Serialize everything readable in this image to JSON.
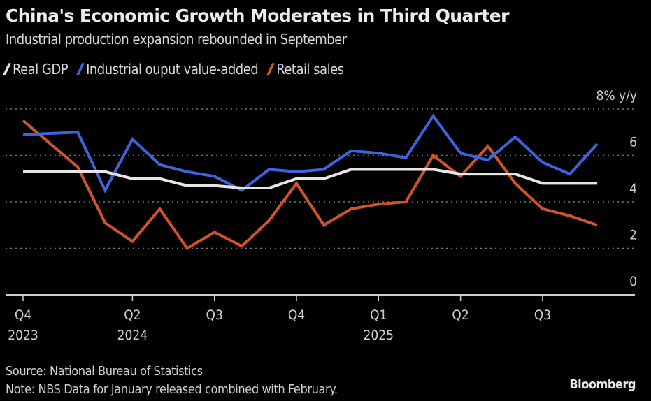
{
  "chart_data": {
    "type": "line",
    "title": "China's Economic Growth Moderates in Third Quarter",
    "subtitle": "Industrial production expansion rebounded in September",
    "unit_label": "8% y/y",
    "ylim": [
      0,
      8
    ],
    "yticks": [
      0,
      2,
      4,
      6,
      8
    ],
    "ytick_labels": [
      "0",
      "2",
      "4",
      "6",
      "8% y/y"
    ],
    "xticks": [
      {
        "label": "Q4",
        "year": "2023",
        "pos": 0
      },
      {
        "label": "Q2",
        "year": "2024",
        "pos": 4
      },
      {
        "label": "Q3",
        "year": "",
        "pos": 7
      },
      {
        "label": "Q4",
        "year": "",
        "pos": 10
      },
      {
        "label": "Q1",
        "year": "2025",
        "pos": 13
      },
      {
        "label": "Q2",
        "year": "",
        "pos": 16
      },
      {
        "label": "Q3",
        "year": "",
        "pos": 19
      }
    ],
    "x_positions": [
      0,
      2,
      3,
      4,
      5,
      6,
      7,
      8,
      9,
      10,
      11,
      12,
      13,
      14,
      15,
      16,
      17,
      18,
      19,
      20,
      21
    ],
    "series": [
      {
        "name": "Real GDP",
        "color": "#e6e6e6",
        "values": [
          5.3,
          5.3,
          5.3,
          5.0,
          5.0,
          4.7,
          4.7,
          4.6,
          4.6,
          5.0,
          5.0,
          5.4,
          5.4,
          5.4,
          5.4,
          5.2,
          5.2,
          5.2,
          4.8,
          4.8,
          4.8
        ]
      },
      {
        "name": "Industrial ouput value-added",
        "color": "#3e63dd",
        "values": [
          6.9,
          7.0,
          4.5,
          6.7,
          5.6,
          5.3,
          5.1,
          4.5,
          5.4,
          5.3,
          5.4,
          6.2,
          6.1,
          5.9,
          7.7,
          6.1,
          5.8,
          6.8,
          5.7,
          5.2,
          6.5
        ]
      },
      {
        "name": "Retail sales",
        "color": "#d0532a",
        "values": [
          7.5,
          5.5,
          3.1,
          2.3,
          3.7,
          2.0,
          2.7,
          2.1,
          3.2,
          4.8,
          3.0,
          3.7,
          3.9,
          4.0,
          6.0,
          5.1,
          6.4,
          4.8,
          3.7,
          3.4,
          3.0
        ]
      }
    ],
    "grid": true,
    "legend": "top-left"
  },
  "footer": {
    "source": "Source: National Bureau of Statistics",
    "note": "Note: NBS Data for January released combined with February.",
    "brand": "Bloomberg"
  }
}
